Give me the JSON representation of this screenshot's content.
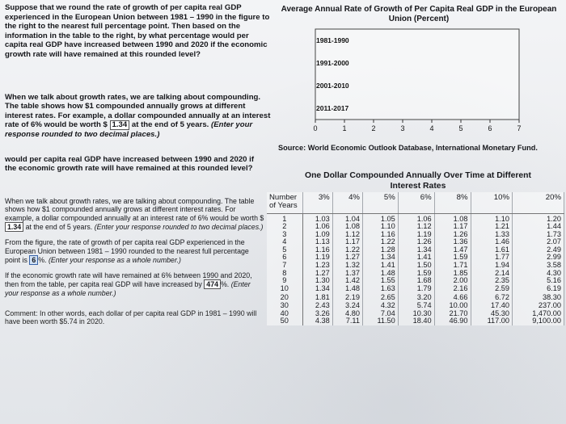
{
  "question": {
    "intro": "Suppose that we round the rate of growth of per capita real GDP experienced in the European Union between 1981 – 1990 in the figure to the right to the nearest full percentage point. Then based on the information in the table to the right, by what percentage would per capita real GDP have increased between 1990 and 2020 if the economic growth rate will have remained at this rounded level?",
    "repeat": "would per capita real GDP have increased between 1990 and 2020 if the economic growth rate will have remained at this rounded level?"
  },
  "compounding": {
    "text_a": "When we talk about growth rates, we are talking about compounding. The table shows how $1 compounded annually grows at different interest rates. For example, a dollar compounded annually at an interest rate of 6% would be worth $",
    "answer": "1.34",
    "text_b": "at the end of 5 years.",
    "instruction": "(Enter your response rounded to two decimal places.)"
  },
  "parts": {
    "p1": {
      "text_a": "When we talk about growth rates, we are talking about compounding. The table shows how $1 compounded annually grows at different interest rates. For example, a dollar compounded annually at an interest rate of 6% would be worth $",
      "answer": "1.34",
      "text_b": "at the end of 5 years.",
      "instruction": "(Enter your response rounded to two decimal places.)"
    },
    "p2": {
      "text_a": "From the figure, the rate of growth of per capita real GDP experienced in the European Union between 1981 – 1990 rounded to the nearest full percentage point is",
      "answer": "6",
      "text_b": "%.",
      "instruction": "(Enter your response as a whole number.)"
    },
    "p3": {
      "text_a": "If the economic growth rate will have remained at 6% between 1990 and 2020, then from the table, per capita real GDP will have increased by",
      "answer": "474",
      "text_b": "%.",
      "instruction": "(Enter your response as a whole number.)"
    },
    "comment": "Comment: In other words, each dollar of per capita real GDP in 1981 – 1990 will have been worth $5.74 in 2020."
  },
  "chart_data": {
    "type": "bar",
    "orientation": "horizontal",
    "title": "Average Annual Rate of Growth of Per Capita Real GDP in the European Union (Percent)",
    "categories": [
      "1981-1990",
      "1991-2000",
      "2001-2010",
      "2011-2017"
    ],
    "values": [
      0,
      0,
      0,
      0
    ],
    "xlim": [
      0,
      7
    ],
    "xticks": [
      "0",
      "1",
      "2",
      "3",
      "4",
      "5",
      "6",
      "7"
    ],
    "source": "Source: World Economic Outlook Database, International Monetary Fund."
  },
  "table": {
    "title": "One Dollar Compounded Annually Over Time at Different",
    "subtitle": "Interest Rates",
    "row_header": "Number of Years",
    "columns": [
      "3%",
      "4%",
      "5%",
      "6%",
      "8%",
      "10%",
      "20%"
    ],
    "rows": [
      {
        "years": "1",
        "values": [
          "1.03",
          "1.04",
          "1.05",
          "1.06",
          "1.08",
          "1.10",
          "1.20"
        ]
      },
      {
        "years": "2",
        "values": [
          "1.06",
          "1.08",
          "1.10",
          "1.12",
          "1.17",
          "1.21",
          "1.44"
        ]
      },
      {
        "years": "3",
        "values": [
          "1.09",
          "1.12",
          "1.16",
          "1.19",
          "1.26",
          "1.33",
          "1.73"
        ]
      },
      {
        "years": "4",
        "values": [
          "1.13",
          "1.17",
          "1.22",
          "1.26",
          "1.36",
          "1.46",
          "2.07"
        ]
      },
      {
        "years": "5",
        "values": [
          "1.16",
          "1.22",
          "1.28",
          "1.34",
          "1.47",
          "1.61",
          "2.49"
        ]
      },
      {
        "years": "6",
        "values": [
          "1.19",
          "1.27",
          "1.34",
          "1.41",
          "1.59",
          "1.77",
          "2.99"
        ]
      },
      {
        "years": "7",
        "values": [
          "1.23",
          "1.32",
          "1.41",
          "1.50",
          "1.71",
          "1.94",
          "3.58"
        ]
      },
      {
        "years": "8",
        "values": [
          "1.27",
          "1.37",
          "1.48",
          "1.59",
          "1.85",
          "2.14",
          "4.30"
        ]
      },
      {
        "years": "9",
        "values": [
          "1.30",
          "1.42",
          "1.55",
          "1.68",
          "2.00",
          "2.35",
          "5.16"
        ]
      },
      {
        "years": "10",
        "values": [
          "1.34",
          "1.48",
          "1.63",
          "1.79",
          "2.16",
          "2.59",
          "6.19"
        ]
      },
      {
        "years": "20",
        "values": [
          "1.81",
          "2.19",
          "2.65",
          "3.20",
          "4.66",
          "6.72",
          "38.30"
        ]
      },
      {
        "years": "30",
        "values": [
          "2.43",
          "3.24",
          "4.32",
          "5.74",
          "10.00",
          "17.40",
          "237.00"
        ]
      },
      {
        "years": "40",
        "values": [
          "3.26",
          "4.80",
          "7.04",
          "10.30",
          "21.70",
          "45.30",
          "1,470.00"
        ]
      },
      {
        "years": "50",
        "values": [
          "4.38",
          "7.11",
          "11.50",
          "18.40",
          "46.90",
          "117.00",
          "9,100.00"
        ]
      }
    ]
  }
}
